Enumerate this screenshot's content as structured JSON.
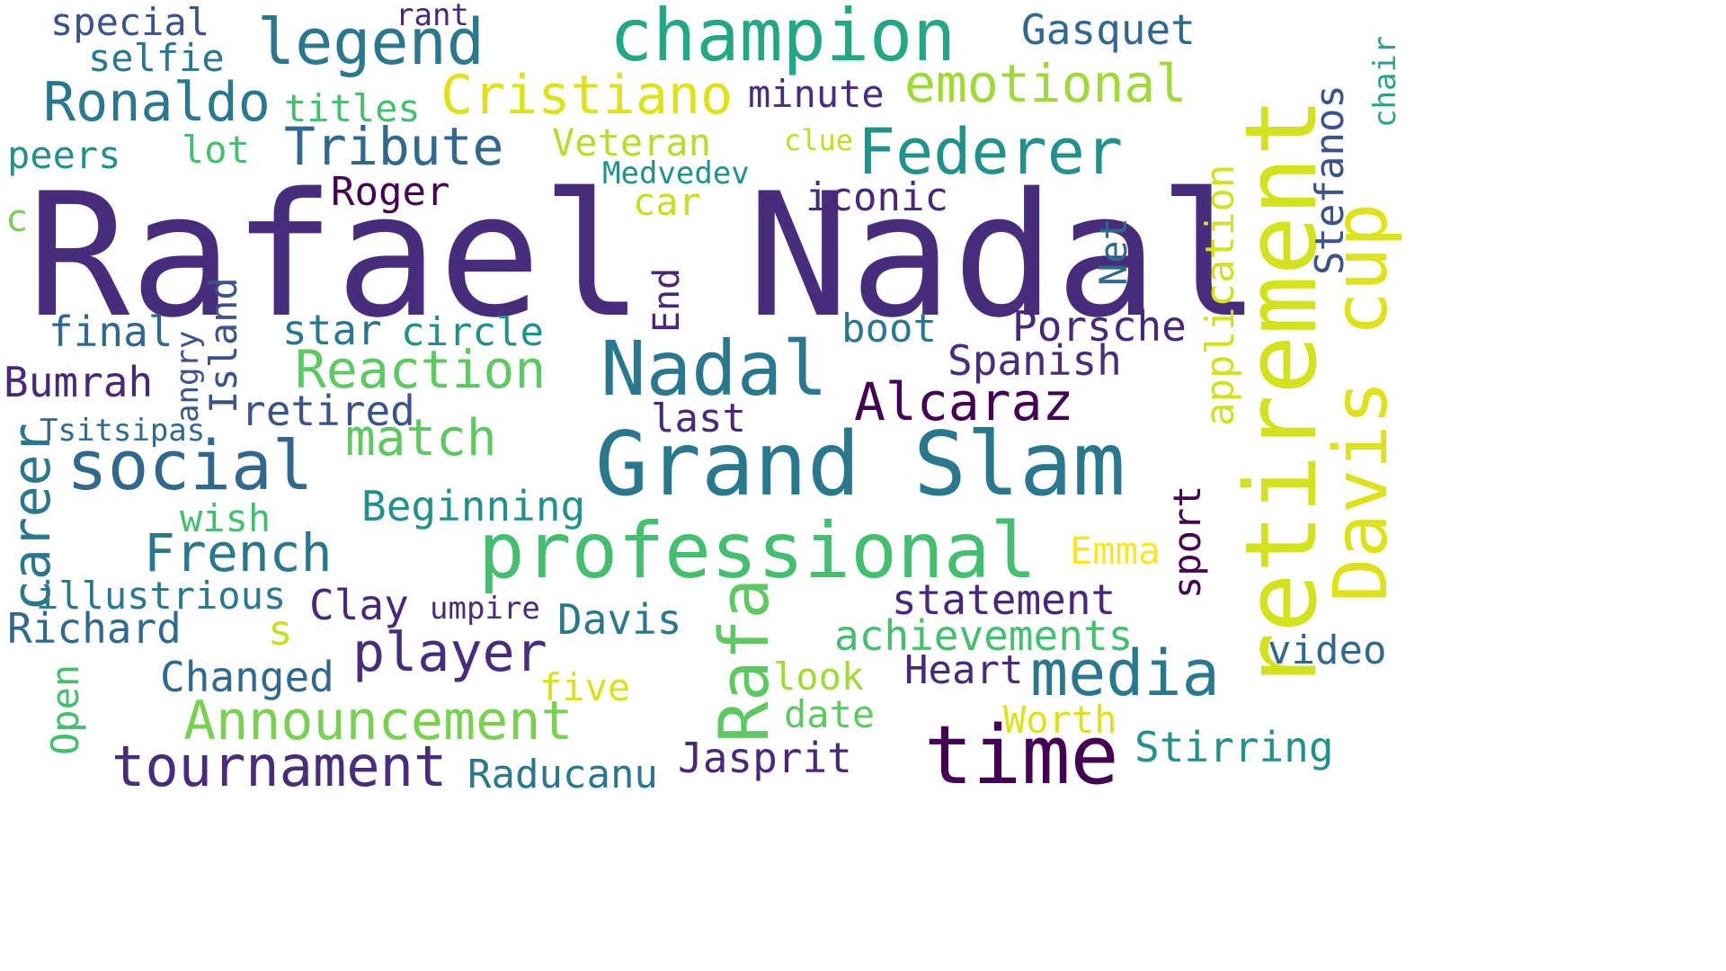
{
  "words": [
    {
      "text": "Rafael Nadal",
      "color": "#472d7b"
    },
    {
      "text": "retirement",
      "color": "#d2e21b"
    },
    {
      "text": "Grand Slam",
      "color": "#2a788e"
    },
    {
      "text": "professional",
      "color": "#44bf70"
    },
    {
      "text": "time",
      "color": "#440154"
    },
    {
      "text": "champion",
      "color": "#22a884"
    },
    {
      "text": "Davis cup",
      "color": "#dde318"
    },
    {
      "text": "Nadal",
      "color": "#2a788e"
    },
    {
      "text": "social",
      "color": "#31688e"
    },
    {
      "text": "Federer",
      "color": "#21918c"
    },
    {
      "text": "legend",
      "color": "#2a788e"
    },
    {
      "text": "media",
      "color": "#2a788e"
    },
    {
      "text": "Rafa",
      "color": "#5ec962"
    },
    {
      "text": "Announcement",
      "color": "#7ad151"
    },
    {
      "text": "tournament",
      "color": "#472d7b"
    },
    {
      "text": "Cristiano",
      "color": "#dde318"
    },
    {
      "text": "Ronaldo",
      "color": "#2a788e"
    },
    {
      "text": "emotional",
      "color": "#a0da39"
    },
    {
      "text": "Tribute",
      "color": "#31688e"
    },
    {
      "text": "Reaction",
      "color": "#5ec962"
    },
    {
      "text": "player",
      "color": "#472d7b"
    },
    {
      "text": "match",
      "color": "#5ec962"
    },
    {
      "text": "Alcaraz",
      "color": "#440154"
    },
    {
      "text": "French",
      "color": "#2a788e"
    },
    {
      "text": "career",
      "color": "#2a788e"
    },
    {
      "text": "Gasquet",
      "color": "#31688e"
    },
    {
      "text": "Porsche",
      "color": "#482878"
    },
    {
      "text": "Spanish",
      "color": "#472d7b"
    },
    {
      "text": "statement",
      "color": "#482878"
    },
    {
      "text": "achievements",
      "color": "#44bf70"
    },
    {
      "text": "Jasprit",
      "color": "#482878"
    },
    {
      "text": "Raducanu",
      "color": "#2a788e"
    },
    {
      "text": "Stirring",
      "color": "#21918c"
    },
    {
      "text": "Changed",
      "color": "#31688e"
    },
    {
      "text": "Heart",
      "color": "#482878"
    },
    {
      "text": "video",
      "color": "#31688e"
    },
    {
      "text": "Beginning",
      "color": "#21918c"
    },
    {
      "text": "Clay",
      "color": "#482878"
    },
    {
      "text": "Davis",
      "color": "#2a788e"
    },
    {
      "text": "Richard",
      "color": "#31688e"
    },
    {
      "text": "illustrious",
      "color": "#2a788e"
    },
    {
      "text": "Bumrah",
      "color": "#482878"
    },
    {
      "text": "retired",
      "color": "#3b528b"
    },
    {
      "text": "final",
      "color": "#31688e"
    },
    {
      "text": "star",
      "color": "#2a788e"
    },
    {
      "text": "circle",
      "color": "#21918c"
    },
    {
      "text": "boot",
      "color": "#2a788e"
    },
    {
      "text": "last",
      "color": "#482878"
    },
    {
      "text": "Roger",
      "color": "#440154"
    },
    {
      "text": "iconic",
      "color": "#482878"
    },
    {
      "text": "minute",
      "color": "#472d7b"
    },
    {
      "text": "Veteran",
      "color": "#b5de2b"
    },
    {
      "text": "Medvedev",
      "color": "#21918c"
    },
    {
      "text": "car",
      "color": "#c8e020"
    },
    {
      "text": "clue",
      "color": "#bddf26"
    },
    {
      "text": "titles",
      "color": "#44bf70"
    },
    {
      "text": "lot",
      "color": "#44bf70"
    },
    {
      "text": "peers",
      "color": "#21918c"
    },
    {
      "text": "special",
      "color": "#3b528b"
    },
    {
      "text": "selfie",
      "color": "#2a788e"
    },
    {
      "text": "rant",
      "color": "#482878"
    },
    {
      "text": "wish",
      "color": "#44bf70"
    },
    {
      "text": "Emma",
      "color": "#fde725"
    },
    {
      "text": "Tsitsipas",
      "color": "#31688e"
    },
    {
      "text": "umpire",
      "color": "#472d7b"
    },
    {
      "text": "look",
      "color": "#a0da39"
    },
    {
      "text": "date",
      "color": "#5ec962"
    },
    {
      "text": "Worth",
      "color": "#dde318"
    },
    {
      "text": "five",
      "color": "#d8e219"
    },
    {
      "text": "s",
      "color": "#c8e020"
    },
    {
      "text": "c",
      "color": "#7ad151"
    },
    {
      "text": "application",
      "color": "#d2e21b"
    },
    {
      "text": "Stefanos",
      "color": "#3b528b"
    },
    {
      "text": "chair",
      "color": "#22a884"
    },
    {
      "text": "Net",
      "color": "#31688e"
    },
    {
      "text": "End",
      "color": "#482878"
    },
    {
      "text": "Island",
      "color": "#3b528b"
    },
    {
      "text": "angry",
      "color": "#3b528b"
    },
    {
      "text": "sport",
      "color": "#440154"
    },
    {
      "text": "Open",
      "color": "#44bf70"
    }
  ]
}
